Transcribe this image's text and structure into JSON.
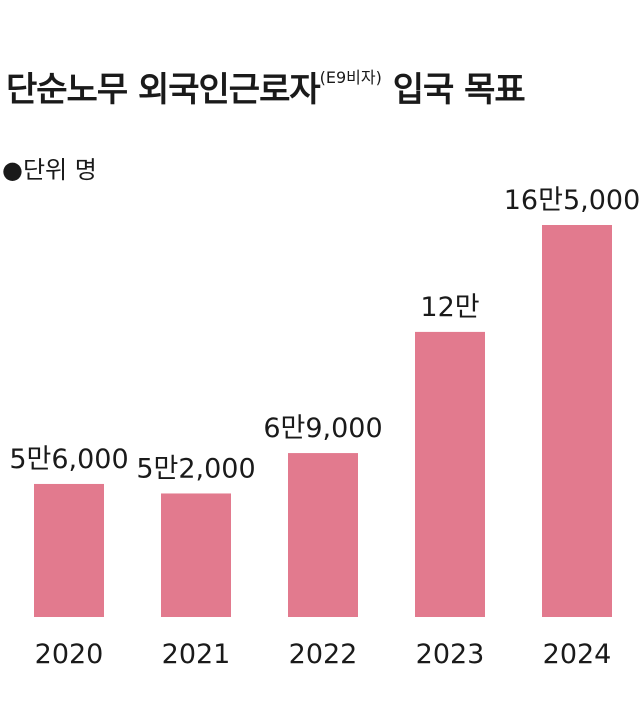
{
  "title": {
    "main": "단순노무 외국인근로자",
    "sup": "(E9비자)",
    "tail": "입국 목표"
  },
  "unit_label": "●단위 명",
  "colors": {
    "bar": "#e27a8e",
    "text": "#1a1a1a"
  },
  "chart_data": {
    "type": "bar",
    "title": "단순노무 외국인근로자(E9비자) 입국 목표",
    "unit": "명",
    "categories": [
      "2020",
      "2021",
      "2022",
      "2023",
      "2024"
    ],
    "values": [
      56000,
      52000,
      69000,
      120000,
      165000
    ],
    "value_labels": [
      "5만6,000",
      "5만2,000",
      "6만9,000",
      "12만",
      "16만5,000"
    ],
    "ylim": [
      0,
      165000
    ],
    "grid": false,
    "legend": "none"
  }
}
